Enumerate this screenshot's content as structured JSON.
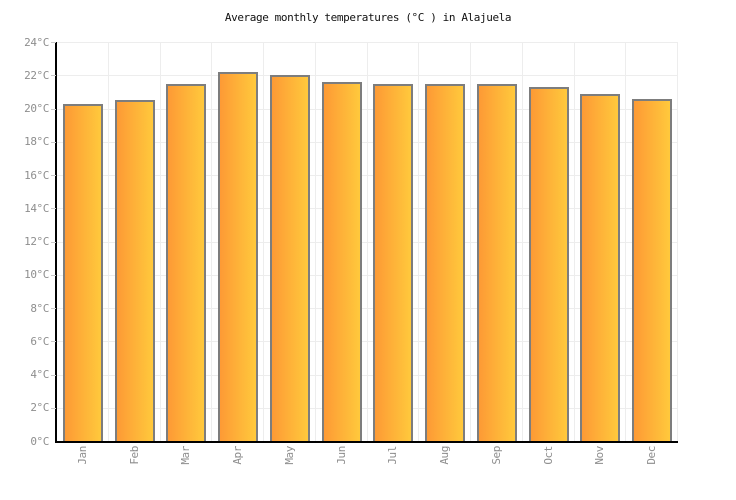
{
  "title": "Average monthly temperatures (°C ) in Alajuela",
  "chart_data": {
    "type": "bar",
    "title": "Average monthly temperatures (°C ) in Alajuela",
    "categories": [
      "Jan",
      "Feb",
      "Mar",
      "Apr",
      "May",
      "Jun",
      "Jul",
      "Aug",
      "Sep",
      "Oct",
      "Nov",
      "Dec"
    ],
    "values": [
      20.3,
      20.5,
      21.5,
      22.2,
      22.0,
      21.6,
      21.5,
      21.5,
      21.5,
      21.3,
      20.9,
      20.6
    ],
    "unit": "°C",
    "xlabel": "",
    "ylabel": "",
    "ylim": [
      0,
      24
    ],
    "ytick_step": 2,
    "ytick_labels": [
      "0°C",
      "2°C",
      "4°C",
      "6°C",
      "8°C",
      "10°C",
      "12°C",
      "14°C",
      "16°C",
      "18°C",
      "20°C",
      "22°C",
      "24°C"
    ],
    "grid": true,
    "legend": "none",
    "colors": {
      "bar_gradient_left": "#fd9a35",
      "bar_gradient_right": "#ffc93c",
      "bar_border": "#7d7d7d",
      "grid_line": "#ededed",
      "axis_line": "#000000",
      "tick_label": "#8e8e8e",
      "title_text": "#111111"
    }
  }
}
